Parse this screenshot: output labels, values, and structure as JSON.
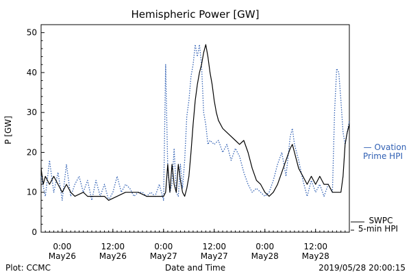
{
  "chart_data": {
    "type": "line",
    "title": "Hemispheric Power [GW]",
    "xlabel": "Date and Time",
    "ylabel": "P [GW]",
    "ylim": [
      0,
      52
    ],
    "xlim": [
      "2019-05-25 19:00",
      "2019-05-28 20:00"
    ],
    "y_ticks": [
      0,
      10,
      20,
      30,
      40,
      50
    ],
    "x_ticks": [
      {
        "time": "2019-05-26 00:00",
        "line1": "0:00",
        "line2": "May26"
      },
      {
        "time": "2019-05-26 12:00",
        "line1": "12:00",
        "line2": "May26"
      },
      {
        "time": "2019-05-27 00:00",
        "line1": "0:00",
        "line2": "May27"
      },
      {
        "time": "2019-05-27 12:00",
        "line1": "12:00",
        "line2": "May27"
      },
      {
        "time": "2019-05-28 00:00",
        "line1": "0:00",
        "line2": "May28"
      },
      {
        "time": "2019-05-28 12:00",
        "line1": "12:00",
        "line2": "May28"
      }
    ],
    "grid": false,
    "legend_placement": "right",
    "series": [
      {
        "name": "Ovation Prime HPI",
        "legend_line1": "— Ovation",
        "legend_line2": "Prime HPI",
        "color": "#2f5fb3",
        "style": "dotted",
        "points": [
          [
            "2019-05-25 19:00",
            14
          ],
          [
            "2019-05-25 20:00",
            9
          ],
          [
            "2019-05-25 21:00",
            18
          ],
          [
            "2019-05-25 22:00",
            10
          ],
          [
            "2019-05-25 23:00",
            15
          ],
          [
            "2019-05-26 00:00",
            8
          ],
          [
            "2019-05-26 01:00",
            17
          ],
          [
            "2019-05-26 02:00",
            9
          ],
          [
            "2019-05-26 03:00",
            12
          ],
          [
            "2019-05-26 04:00",
            14
          ],
          [
            "2019-05-26 05:00",
            10
          ],
          [
            "2019-05-26 06:00",
            13
          ],
          [
            "2019-05-26 07:00",
            8
          ],
          [
            "2019-05-26 08:00",
            13
          ],
          [
            "2019-05-26 09:00",
            9
          ],
          [
            "2019-05-26 10:00",
            12
          ],
          [
            "2019-05-26 11:00",
            8
          ],
          [
            "2019-05-26 12:00",
            10
          ],
          [
            "2019-05-26 13:00",
            14
          ],
          [
            "2019-05-26 14:00",
            10
          ],
          [
            "2019-05-26 15:00",
            12
          ],
          [
            "2019-05-26 16:00",
            11
          ],
          [
            "2019-05-26 17:00",
            9
          ],
          [
            "2019-05-26 18:00",
            10
          ],
          [
            "2019-05-26 19:00",
            10
          ],
          [
            "2019-05-26 20:00",
            9
          ],
          [
            "2019-05-26 21:00",
            10
          ],
          [
            "2019-05-26 22:00",
            9
          ],
          [
            "2019-05-26 23:00",
            12
          ],
          [
            "2019-05-27 00:00",
            8
          ],
          [
            "2019-05-27 00:30",
            42
          ],
          [
            "2019-05-27 01:00",
            16
          ],
          [
            "2019-05-27 01:30",
            10
          ],
          [
            "2019-05-27 02:00",
            12
          ],
          [
            "2019-05-27 02:30",
            21
          ],
          [
            "2019-05-27 03:00",
            10
          ],
          [
            "2019-05-27 03:30",
            9
          ],
          [
            "2019-05-27 04:00",
            17
          ],
          [
            "2019-05-27 04:30",
            11
          ],
          [
            "2019-05-27 05:00",
            18
          ],
          [
            "2019-05-27 05:30",
            29
          ],
          [
            "2019-05-27 06:00",
            33
          ],
          [
            "2019-05-27 06:30",
            39
          ],
          [
            "2019-05-27 07:00",
            42
          ],
          [
            "2019-05-27 07:30",
            47
          ],
          [
            "2019-05-27 08:00",
            44
          ],
          [
            "2019-05-27 08:30",
            47
          ],
          [
            "2019-05-27 09:00",
            42
          ],
          [
            "2019-05-27 09:30",
            30
          ],
          [
            "2019-05-27 10:00",
            27
          ],
          [
            "2019-05-27 10:30",
            22
          ],
          [
            "2019-05-27 11:00",
            23
          ],
          [
            "2019-05-27 12:00",
            22
          ],
          [
            "2019-05-27 13:00",
            23
          ],
          [
            "2019-05-27 14:00",
            20
          ],
          [
            "2019-05-27 15:00",
            22
          ],
          [
            "2019-05-27 16:00",
            18
          ],
          [
            "2019-05-27 17:00",
            21
          ],
          [
            "2019-05-27 18:00",
            19
          ],
          [
            "2019-05-27 19:00",
            15
          ],
          [
            "2019-05-27 20:00",
            12
          ],
          [
            "2019-05-27 21:00",
            10
          ],
          [
            "2019-05-27 22:00",
            11
          ],
          [
            "2019-05-27 23:00",
            10
          ],
          [
            "2019-05-28 00:00",
            9
          ],
          [
            "2019-05-28 01:00",
            10
          ],
          [
            "2019-05-28 02:00",
            13
          ],
          [
            "2019-05-28 03:00",
            17
          ],
          [
            "2019-05-28 04:00",
            20
          ],
          [
            "2019-05-28 05:00",
            14
          ],
          [
            "2019-05-28 06:00",
            24
          ],
          [
            "2019-05-28 06:30",
            26
          ],
          [
            "2019-05-28 07:00",
            22
          ],
          [
            "2019-05-28 08:00",
            18
          ],
          [
            "2019-05-28 09:00",
            13
          ],
          [
            "2019-05-28 10:00",
            9
          ],
          [
            "2019-05-28 11:00",
            13
          ],
          [
            "2019-05-28 12:00",
            10
          ],
          [
            "2019-05-28 13:00",
            12
          ],
          [
            "2019-05-28 14:00",
            9
          ],
          [
            "2019-05-28 15:00",
            12
          ],
          [
            "2019-05-28 16:00",
            10
          ],
          [
            "2019-05-28 16:30",
            30
          ],
          [
            "2019-05-28 17:00",
            41
          ],
          [
            "2019-05-28 17:30",
            40
          ],
          [
            "2019-05-28 18:00",
            33
          ],
          [
            "2019-05-28 18:30",
            25
          ],
          [
            "2019-05-28 19:00",
            22
          ],
          [
            "2019-05-28 20:00",
            28
          ]
        ]
      },
      {
        "name": "SWPC 5-min HPI",
        "legend_line1": "SWPC",
        "legend_line2": "5-min HPI",
        "color": "#000000",
        "style": "solid",
        "points": [
          [
            "2019-05-25 19:00",
            16
          ],
          [
            "2019-05-25 19:30",
            12
          ],
          [
            "2019-05-25 20:00",
            14
          ],
          [
            "2019-05-25 21:00",
            12
          ],
          [
            "2019-05-25 22:00",
            14
          ],
          [
            "2019-05-25 23:00",
            12
          ],
          [
            "2019-05-26 00:00",
            10
          ],
          [
            "2019-05-26 01:00",
            12
          ],
          [
            "2019-05-26 02:00",
            10
          ],
          [
            "2019-05-26 03:00",
            9
          ],
          [
            "2019-05-26 05:00",
            10
          ],
          [
            "2019-05-26 06:00",
            9
          ],
          [
            "2019-05-26 08:00",
            9
          ],
          [
            "2019-05-26 10:00",
            9
          ],
          [
            "2019-05-26 11:00",
            8
          ],
          [
            "2019-05-26 13:00",
            9
          ],
          [
            "2019-05-26 15:00",
            10
          ],
          [
            "2019-05-26 18:00",
            10
          ],
          [
            "2019-05-26 20:00",
            9
          ],
          [
            "2019-05-26 23:00",
            9
          ],
          [
            "2019-05-27 00:00",
            9
          ],
          [
            "2019-05-27 00:30",
            10
          ],
          [
            "2019-05-27 01:00",
            17
          ],
          [
            "2019-05-27 01:30",
            10
          ],
          [
            "2019-05-27 02:00",
            17
          ],
          [
            "2019-05-27 02:30",
            12
          ],
          [
            "2019-05-27 03:00",
            10
          ],
          [
            "2019-05-27 03:30",
            17
          ],
          [
            "2019-05-27 04:00",
            13
          ],
          [
            "2019-05-27 04:30",
            10
          ],
          [
            "2019-05-27 05:00",
            9
          ],
          [
            "2019-05-27 05:30",
            11
          ],
          [
            "2019-05-27 06:00",
            14
          ],
          [
            "2019-05-27 06:30",
            20
          ],
          [
            "2019-05-27 07:00",
            27
          ],
          [
            "2019-05-27 07:30",
            33
          ],
          [
            "2019-05-27 08:00",
            37
          ],
          [
            "2019-05-27 08:30",
            40
          ],
          [
            "2019-05-27 09:00",
            42
          ],
          [
            "2019-05-27 09:30",
            45
          ],
          [
            "2019-05-27 10:00",
            47
          ],
          [
            "2019-05-27 10:30",
            44
          ],
          [
            "2019-05-27 11:00",
            40
          ],
          [
            "2019-05-27 11:30",
            37
          ],
          [
            "2019-05-27 12:00",
            33
          ],
          [
            "2019-05-27 12:30",
            30
          ],
          [
            "2019-05-27 13:00",
            28
          ],
          [
            "2019-05-27 14:00",
            26
          ],
          [
            "2019-05-27 15:00",
            25
          ],
          [
            "2019-05-27 16:00",
            24
          ],
          [
            "2019-05-27 17:00",
            23
          ],
          [
            "2019-05-27 18:00",
            22
          ],
          [
            "2019-05-27 19:00",
            23
          ],
          [
            "2019-05-27 20:00",
            20
          ],
          [
            "2019-05-27 21:00",
            16
          ],
          [
            "2019-05-27 22:00",
            13
          ],
          [
            "2019-05-27 23:00",
            12
          ],
          [
            "2019-05-28 00:00",
            10
          ],
          [
            "2019-05-28 01:00",
            9
          ],
          [
            "2019-05-28 02:00",
            10
          ],
          [
            "2019-05-28 03:00",
            12
          ],
          [
            "2019-05-28 04:00",
            15
          ],
          [
            "2019-05-28 05:00",
            18
          ],
          [
            "2019-05-28 06:00",
            21
          ],
          [
            "2019-05-28 06:30",
            22
          ],
          [
            "2019-05-28 07:00",
            20
          ],
          [
            "2019-05-28 08:00",
            16
          ],
          [
            "2019-05-28 09:00",
            14
          ],
          [
            "2019-05-28 10:00",
            12
          ],
          [
            "2019-05-28 11:00",
            14
          ],
          [
            "2019-05-28 12:00",
            12
          ],
          [
            "2019-05-28 13:00",
            14
          ],
          [
            "2019-05-28 14:00",
            12
          ],
          [
            "2019-05-28 15:00",
            12
          ],
          [
            "2019-05-28 16:00",
            10
          ],
          [
            "2019-05-28 17:00",
            10
          ],
          [
            "2019-05-28 18:00",
            10
          ],
          [
            "2019-05-28 18:30",
            14
          ],
          [
            "2019-05-28 19:00",
            22
          ],
          [
            "2019-05-28 19:30",
            25
          ],
          [
            "2019-05-28 20:00",
            27
          ]
        ]
      }
    ]
  },
  "footer": {
    "left": "Plot: CCMC",
    "right": "2019/05/28 20:00:15"
  }
}
